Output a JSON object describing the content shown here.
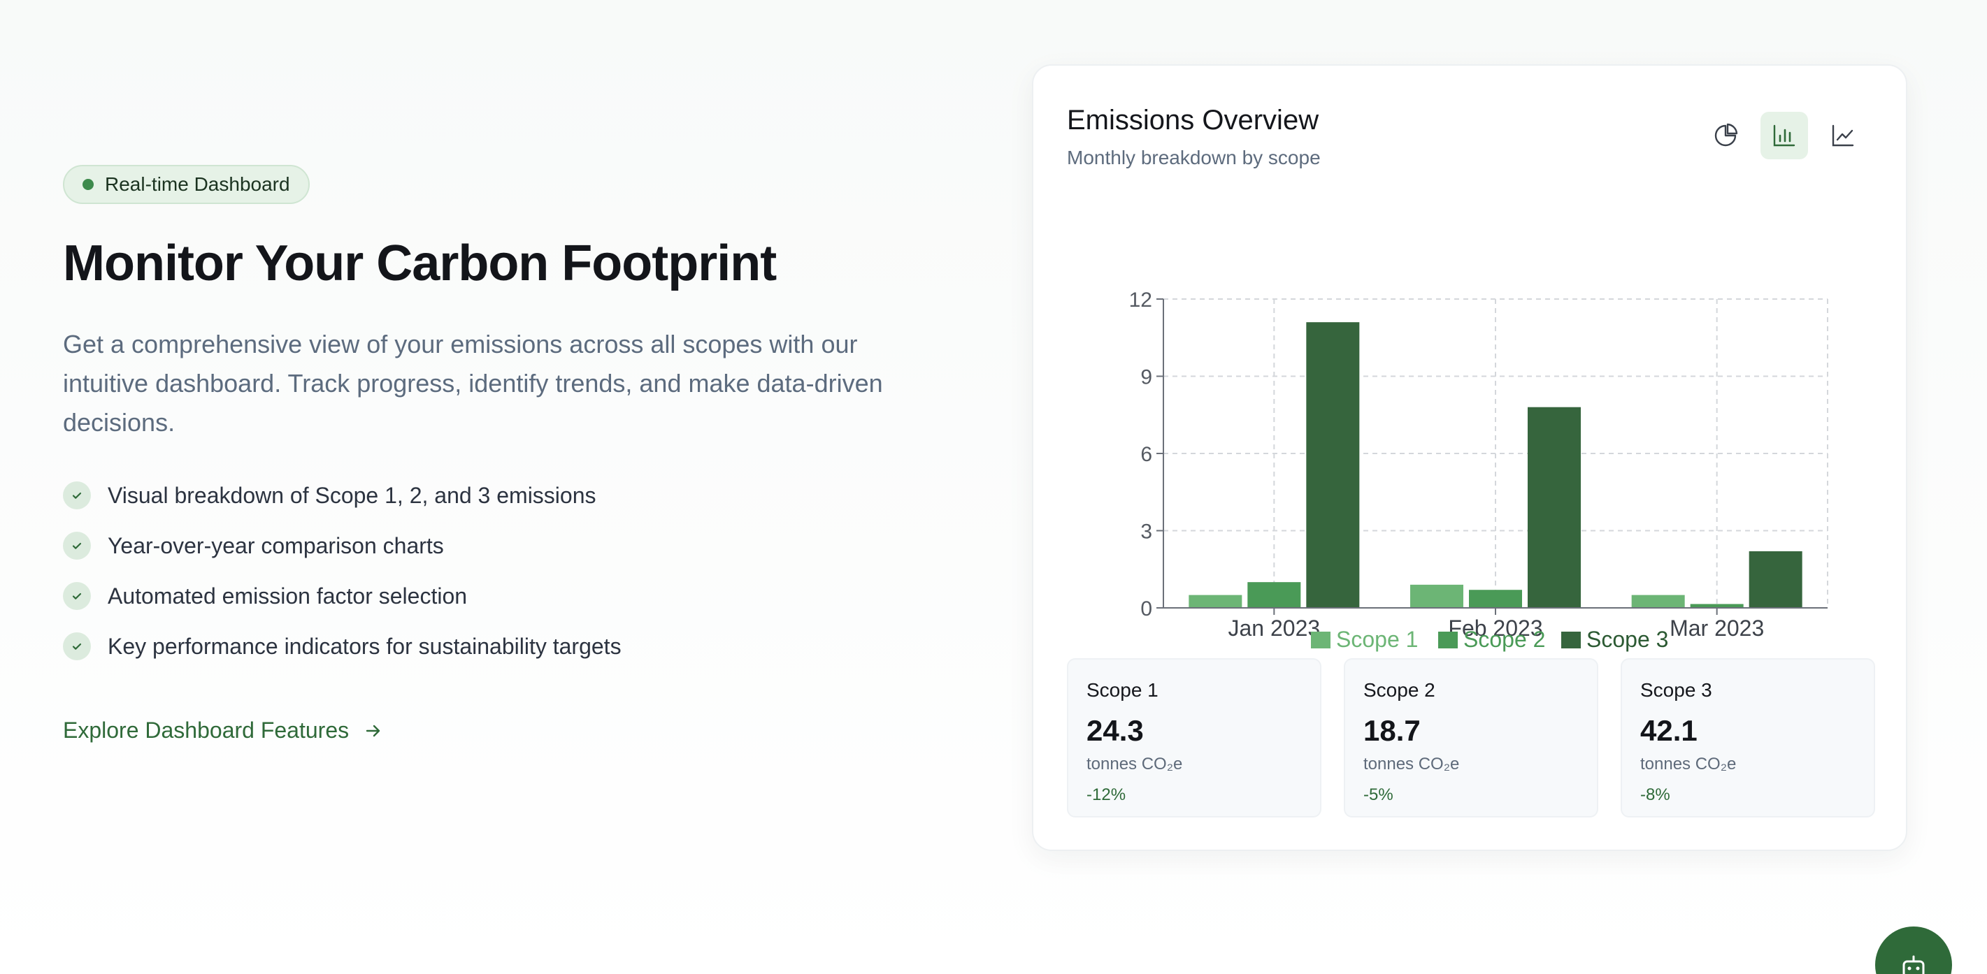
{
  "hero": {
    "badge": "Real-time Dashboard",
    "title": "Monitor Your Carbon Footprint",
    "subtitle": "Get a comprehensive view of your emissions across all scopes with our intuitive dashboard. Track progress, identify trends, and make data-driven decisions.",
    "features": [
      "Visual breakdown of Scope 1, 2, and 3 emissions",
      "Year-over-year comparison charts",
      "Automated emission factor selection",
      "Key performance indicators for sustainability targets"
    ],
    "cta": "Explore Dashboard Features",
    "icons": {
      "badge_dot": "status-dot",
      "feature": "check-icon",
      "cta": "arrow-right-icon"
    }
  },
  "card": {
    "title": "Emissions Overview",
    "subtitle": "Monthly breakdown by scope",
    "view_buttons": [
      {
        "icon": "pie-chart-icon",
        "active": false
      },
      {
        "icon": "bar-chart-icon",
        "active": true
      },
      {
        "icon": "line-chart-icon",
        "active": false
      }
    ]
  },
  "chart_data": {
    "type": "bar",
    "categories": [
      "Jan 2023",
      "Feb 2023",
      "Mar 2023"
    ],
    "series": [
      {
        "name": "Scope 1",
        "values": [
          0.5,
          0.9,
          0.5
        ],
        "color": "#6cb575"
      },
      {
        "name": "Scope 2",
        "values": [
          1.0,
          0.7,
          0.15
        ],
        "color": "#4a9a57"
      },
      {
        "name": "Scope 3",
        "values": [
          11.1,
          7.8,
          2.2
        ],
        "color": "#36653d"
      }
    ],
    "ylim": [
      0,
      12
    ],
    "yticks": [
      0,
      3,
      6,
      9,
      12
    ],
    "grid": true,
    "legend": "bottom"
  },
  "stats": [
    {
      "label": "Scope 1",
      "value": "24.3",
      "unit": "tonnes CO₂e",
      "change": "-12%"
    },
    {
      "label": "Scope 2",
      "value": "18.7",
      "unit": "tonnes CO₂e",
      "change": "-5%"
    },
    {
      "label": "Scope 3",
      "value": "42.1",
      "unit": "tonnes CO₂e",
      "change": "-8%"
    }
  ],
  "fab": {
    "icon": "robot-icon"
  },
  "colors": {
    "accent": "#2f6a39",
    "badge_bg": "#e6f2e7"
  }
}
